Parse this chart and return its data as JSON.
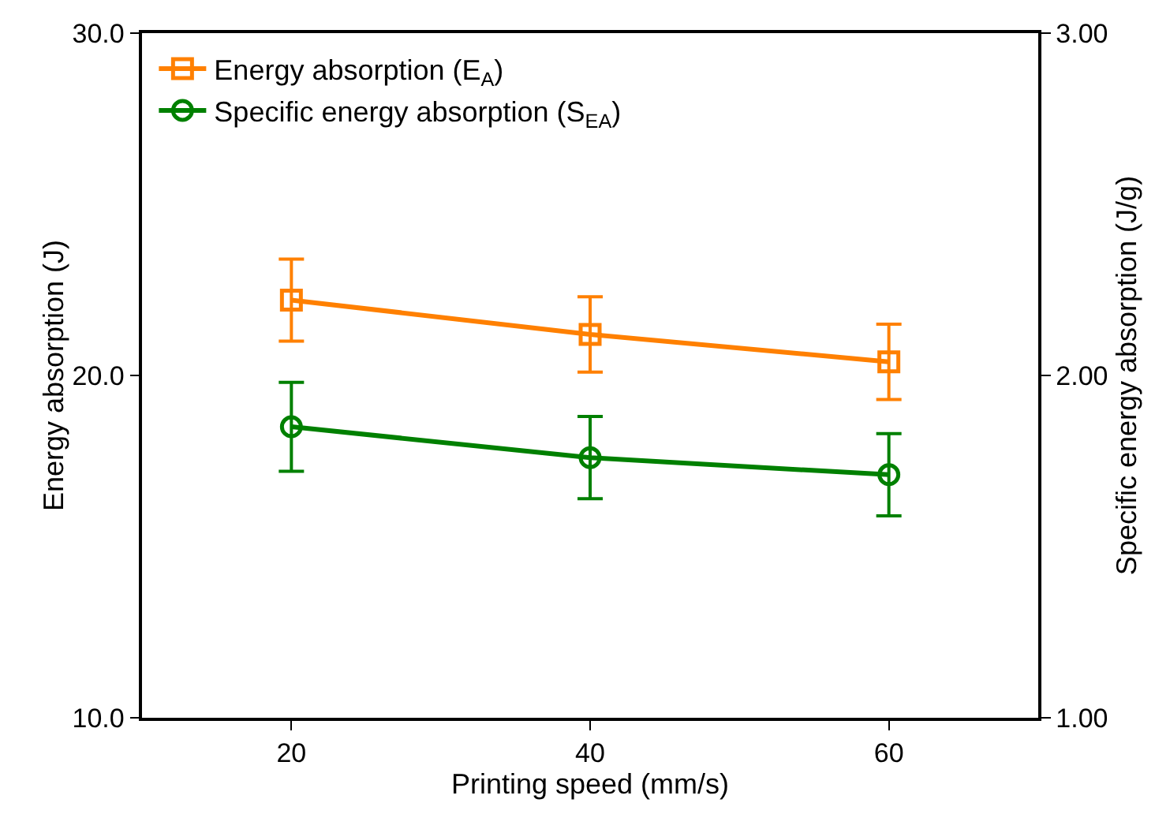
{
  "chart_data": {
    "type": "line",
    "xlabel": "Printing speed (mm/s)",
    "ylabel": "Energy absorption (J)",
    "y2label": "Specific energy absorption (J/g)",
    "x": [
      20,
      40,
      60
    ],
    "xlim": [
      10,
      70
    ],
    "xticks": [
      20,
      40,
      60
    ],
    "ylim": [
      10,
      30
    ],
    "yticks": [
      {
        "value": 10,
        "label": "10.0"
      },
      {
        "value": 20,
        "label": "20.0"
      },
      {
        "value": 30,
        "label": "30.0"
      }
    ],
    "y2lim": [
      1,
      3
    ],
    "y2ticks": [
      {
        "value": 1,
        "label": "1.00"
      },
      {
        "value": 2,
        "label": "2.00"
      },
      {
        "value": 3,
        "label": "3.00"
      }
    ],
    "grid": false,
    "legend": "top left",
    "line_style": "solid",
    "series": [
      {
        "name": "Energy absorption (E$_{A}$)",
        "color": "#ff8000",
        "marker": "square",
        "values": [
          22.2,
          21.2,
          20.4
        ],
        "errors": [
          [
            21.0,
            23.4
          ],
          [
            20.1,
            22.3
          ],
          [
            19.3,
            21.5
          ]
        ]
      },
      {
        "name": "Specific energy absorption (S$_{EA}$)",
        "color": "#008000",
        "marker": "circle",
        "axis": "y2",
        "values": [
          1.85,
          1.76,
          1.71
        ],
        "errors": [
          [
            1.72,
            1.98
          ],
          [
            1.64,
            1.88
          ],
          [
            1.59,
            1.83
          ]
        ]
      }
    ]
  }
}
